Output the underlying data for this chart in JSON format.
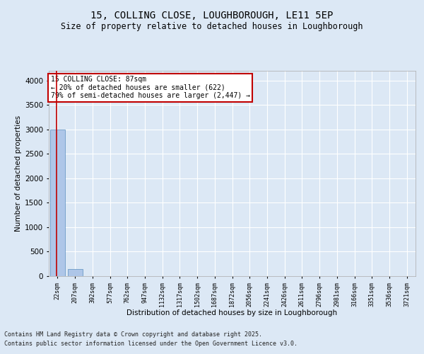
{
  "title_line1": "15, COLLING CLOSE, LOUGHBOROUGH, LE11 5EP",
  "title_line2": "Size of property relative to detached houses in Loughborough",
  "xlabel": "Distribution of detached houses by size in Loughborough",
  "ylabel": "Number of detached properties",
  "annotation_line1": "15 COLLING CLOSE: 87sqm",
  "annotation_line2": "← 20% of detached houses are smaller (622)",
  "annotation_line3": "79% of semi-detached houses are larger (2,447) →",
  "categories": [
    "22sqm",
    "207sqm",
    "392sqm",
    "577sqm",
    "762sqm",
    "947sqm",
    "1132sqm",
    "1317sqm",
    "1502sqm",
    "1687sqm",
    "1872sqm",
    "2056sqm",
    "2241sqm",
    "2426sqm",
    "2611sqm",
    "2796sqm",
    "2981sqm",
    "3166sqm",
    "3351sqm",
    "3536sqm",
    "3721sqm"
  ],
  "values": [
    3000,
    150,
    0,
    0,
    0,
    0,
    0,
    0,
    0,
    0,
    0,
    0,
    0,
    0,
    0,
    0,
    0,
    0,
    0,
    0,
    0
  ],
  "bar_color": "#aec6e8",
  "bar_edge_color": "#5a8fc0",
  "vline_color": "#c00000",
  "annotation_box_color": "#c00000",
  "ylim": [
    0,
    4200
  ],
  "yticks": [
    0,
    500,
    1000,
    1500,
    2000,
    2500,
    3000,
    3500,
    4000
  ],
  "background_color": "#dce8f5",
  "grid_color": "#ffffff",
  "footer_line1": "Contains HM Land Registry data © Crown copyright and database right 2025.",
  "footer_line2": "Contains public sector information licensed under the Open Government Licence v3.0."
}
